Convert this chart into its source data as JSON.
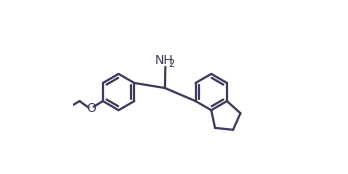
{
  "line_color": "#3c3c5a",
  "bg_color": "#ffffff",
  "line_width": 1.6,
  "figsize": [
    3.48,
    1.74
  ],
  "dpi": 100
}
